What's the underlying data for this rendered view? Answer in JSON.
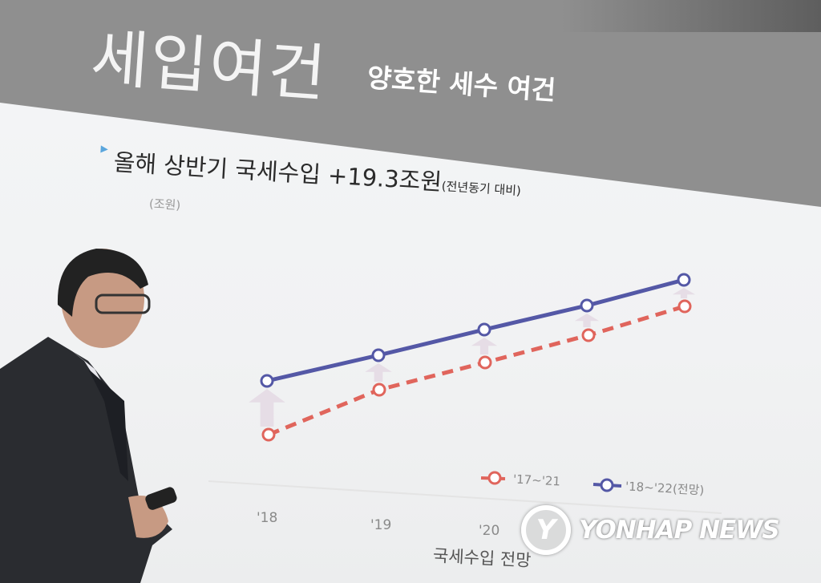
{
  "slide": {
    "title": "세입여건",
    "subtitle": "양호한 세수 여건",
    "bullet": "올해 상반기 국세수입 +19.3조원",
    "bullet_note": "(전년동기 대비)",
    "unit": "(조원)",
    "x_labels": [
      "'18",
      "'19",
      "'20"
    ],
    "chart_title": "국세수입 전망",
    "legend": [
      {
        "label": "'17~'21",
        "color": "#e0655c",
        "style": "dashed"
      },
      {
        "label": "'18~'22(전망)",
        "color": "#5458a6",
        "style": "solid"
      }
    ]
  },
  "watermark": {
    "logo_text": "Y",
    "text": "YONHAP NEWS"
  }
}
